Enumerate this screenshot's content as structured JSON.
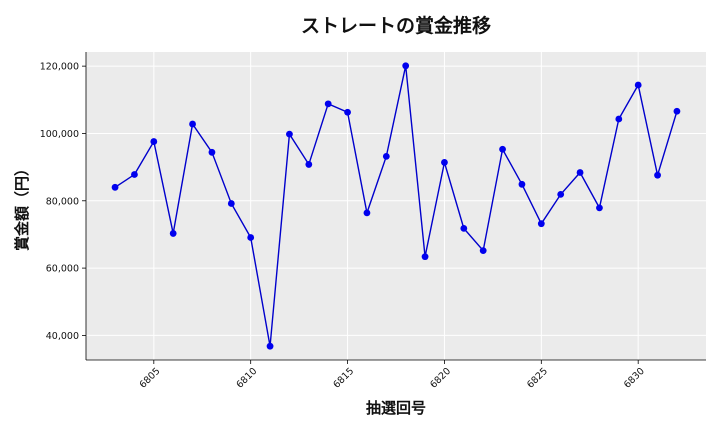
{
  "chart_data": {
    "type": "line",
    "title": "ストレートの賞金推移",
    "xlabel": "抽選回号",
    "ylabel": "賞金額（円）",
    "x": [
      6803,
      6804,
      6805,
      6806,
      6807,
      6808,
      6809,
      6810,
      6811,
      6812,
      6813,
      6814,
      6815,
      6816,
      6817,
      6818,
      6819,
      6820,
      6821,
      6822,
      6823,
      6824,
      6825,
      6826,
      6827,
      6828,
      6829,
      6830,
      6831,
      6832
    ],
    "series": [
      {
        "values": [
          84000,
          87800,
          97600,
          70300,
          102800,
          94400,
          79200,
          69100,
          36800,
          99800,
          90800,
          108800,
          106300,
          76400,
          93200,
          120100,
          63400,
          91400,
          71800,
          65200,
          95300,
          84900,
          73200,
          81900,
          88400,
          77900,
          104300,
          114400,
          87600,
          106600
        ]
      }
    ],
    "xticks": [
      6805,
      6810,
      6815,
      6820,
      6825,
      6830
    ],
    "xtick_labels": [
      "6805",
      "6810",
      "6815",
      "6820",
      "6825",
      "6830"
    ],
    "yticks": [
      40000,
      60000,
      80000,
      100000,
      120000
    ],
    "ytick_labels": [
      "40,000",
      "60,000",
      "80,000",
      "100,000",
      "120,000"
    ],
    "xlim": [
      6801.5,
      6833.5
    ],
    "ylim": [
      32700,
      124200
    ],
    "grid": true,
    "legend": "none",
    "colors": {
      "line": "#0000cc",
      "marker": "#0000ee",
      "plot_background": "#ebebeb",
      "grid": "#ffffff"
    }
  }
}
